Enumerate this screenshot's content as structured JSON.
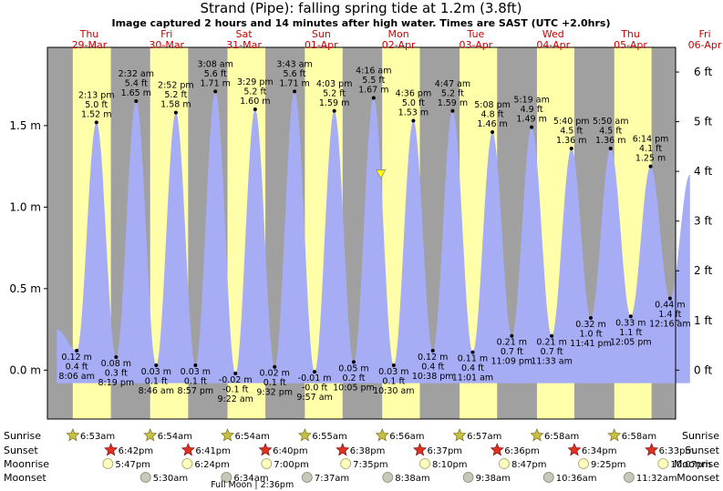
{
  "header": {
    "title": "Strand (Pipe): falling  spring tide at 1.2m (3.8ft)",
    "subtitle": "Image captured 2 hours and 14 minutes after high water. Times are SAST (UTC +2.0hrs)"
  },
  "colors": {
    "night": "#a0a0a0",
    "day": "#ffffaa",
    "tide": "#a6adf5",
    "day_label": "#cc0000",
    "now_marker": "#ffff00"
  },
  "chart_data": {
    "type": "area",
    "title": "Strand (Pipe): falling  spring tide at 1.2m (3.8ft)",
    "y_left_unit": "m",
    "y_right_unit": "ft",
    "ylim_m": [
      -0.3,
      1.98
    ],
    "y_left_ticks": [
      "1.5 m",
      "1.0 m",
      "0.5 m",
      "0.0 m"
    ],
    "y_left_tick_values": [
      1.5,
      1.0,
      0.5,
      0.0
    ],
    "y_right_ticks": [
      "6 ft",
      "5 ft",
      "4 ft",
      "3 ft",
      "2 ft",
      "1 ft",
      "0 ft"
    ],
    "y_right_tick_values": [
      6,
      5,
      4,
      3,
      2,
      1,
      0
    ],
    "x_start": "2026-03-28 23:00",
    "x_end": "2026-04-06 02:00",
    "grid": false,
    "days": [
      {
        "name": "Thu",
        "date": "29-Mar",
        "noon": "2026-03-29 12:00"
      },
      {
        "name": "Fri",
        "date": "30-Mar",
        "noon": "2026-03-30 12:00"
      },
      {
        "name": "Sat",
        "date": "31-Mar",
        "noon": "2026-03-31 12:00"
      },
      {
        "name": "Sun",
        "date": "01-Apr",
        "noon": "2026-04-01 12:00"
      },
      {
        "name": "Mon",
        "date": "02-Apr",
        "noon": "2026-04-02 12:00"
      },
      {
        "name": "Tue",
        "date": "03-Apr",
        "noon": "2026-04-03 12:00"
      },
      {
        "name": "Wed",
        "date": "04-Apr",
        "noon": "2026-04-04 12:00"
      },
      {
        "name": "Thu",
        "date": "05-Apr",
        "noon": "2026-04-05 12:00"
      },
      {
        "name": "Fri",
        "date": "06-Apr",
        "noon": "2026-04-06 12:00"
      }
    ],
    "daylight": [
      {
        "sunrise": "2026-03-29 06:53",
        "sunset": "2026-03-29 18:42"
      },
      {
        "sunrise": "2026-03-30 06:54",
        "sunset": "2026-03-30 18:41"
      },
      {
        "sunrise": "2026-03-31 06:54",
        "sunset": "2026-03-31 18:40"
      },
      {
        "sunrise": "2026-04-01 06:55",
        "sunset": "2026-04-01 18:38"
      },
      {
        "sunrise": "2026-04-02 06:56",
        "sunset": "2026-04-02 18:37"
      },
      {
        "sunrise": "2026-04-03 06:57",
        "sunset": "2026-04-03 18:36"
      },
      {
        "sunrise": "2026-04-04 06:58",
        "sunset": "2026-04-04 18:34"
      },
      {
        "sunrise": "2026-04-05 06:58",
        "sunset": "2026-04-05 18:33"
      }
    ],
    "extremes": [
      {
        "time": "2026-03-29 08:06",
        "height_m": 0.12,
        "type": "low",
        "lines": [
          "0.12 m",
          "0.4 ft",
          "8:06 am"
        ]
      },
      {
        "time": "2026-03-29 14:13",
        "height_m": 1.52,
        "type": "high",
        "lines": [
          "2:13 pm",
          "5.0 ft",
          "1.52 m"
        ]
      },
      {
        "time": "2026-03-29 20:19",
        "height_m": 0.08,
        "type": "low",
        "lines": [
          "0.08 m",
          "0.3 ft",
          "8:19 pm"
        ]
      },
      {
        "time": "2026-03-30 02:32",
        "height_m": 1.65,
        "type": "high",
        "lines": [
          "2:32 am",
          "5.4 ft",
          "1.65 m"
        ]
      },
      {
        "time": "2026-03-30 08:46",
        "height_m": 0.03,
        "type": "low",
        "lines": [
          "0.03 m",
          "0.1 ft",
          "8:46 am"
        ]
      },
      {
        "time": "2026-03-30 14:52",
        "height_m": 1.58,
        "type": "high",
        "lines": [
          "2:52 pm",
          "5.2 ft",
          "1.58 m"
        ]
      },
      {
        "time": "2026-03-30 20:57",
        "height_m": 0.03,
        "type": "low",
        "lines": [
          "0.03 m",
          "0.1 ft",
          "8:57 pm"
        ]
      },
      {
        "time": "2026-03-31 03:08",
        "height_m": 1.71,
        "type": "high",
        "lines": [
          "3:08 am",
          "5.6 ft",
          "1.71 m"
        ]
      },
      {
        "time": "2026-03-31 09:22",
        "height_m": -0.02,
        "type": "low",
        "lines": [
          "-0.02 m",
          "-0.1 ft",
          "9:22 am"
        ]
      },
      {
        "time": "2026-03-31 15:29",
        "height_m": 1.6,
        "type": "high",
        "lines": [
          "3:29 pm",
          "5.2 ft",
          "1.60 m"
        ]
      },
      {
        "time": "2026-03-31 21:32",
        "height_m": 0.02,
        "type": "low",
        "lines": [
          "0.02 m",
          "0.1 ft",
          "9:32 pm"
        ]
      },
      {
        "time": "2026-04-01 03:43",
        "height_m": 1.71,
        "type": "high",
        "lines": [
          "3:43 am",
          "5.6 ft",
          "1.71 m"
        ]
      },
      {
        "time": "2026-04-01 09:57",
        "height_m": -0.01,
        "type": "low",
        "lines": [
          "-0.01 m",
          "-0.0 ft",
          "9:57 am"
        ]
      },
      {
        "time": "2026-04-01 16:03",
        "height_m": 1.59,
        "type": "high",
        "lines": [
          "4:03 pm",
          "5.2 ft",
          "1.59 m"
        ]
      },
      {
        "time": "2026-04-01 22:05",
        "height_m": 0.05,
        "type": "low",
        "lines": [
          "0.05 m",
          "0.2 ft",
          "10:05 pm"
        ]
      },
      {
        "time": "2026-04-02 04:16",
        "height_m": 1.67,
        "type": "high",
        "lines": [
          "4:16 am",
          "5.5 ft",
          "1.67 m"
        ]
      },
      {
        "time": "2026-04-02 10:30",
        "height_m": 0.03,
        "type": "low",
        "lines": [
          "0.03 m",
          "0.1 ft",
          "10:30 am"
        ]
      },
      {
        "time": "2026-04-02 16:36",
        "height_m": 1.53,
        "type": "high",
        "lines": [
          "4:36 pm",
          "5.0 ft",
          "1.53 m"
        ]
      },
      {
        "time": "2026-04-02 22:38",
        "height_m": 0.12,
        "type": "low",
        "lines": [
          "0.12 m",
          "0.4 ft",
          "10:38 pm"
        ]
      },
      {
        "time": "2026-04-03 04:47",
        "height_m": 1.59,
        "type": "high",
        "lines": [
          "4:47 am",
          "5.2 ft",
          "1.59 m"
        ]
      },
      {
        "time": "2026-04-03 11:01",
        "height_m": 0.11,
        "type": "low",
        "lines": [
          "0.11 m",
          "0.4 ft",
          "11:01 am"
        ]
      },
      {
        "time": "2026-04-03 17:08",
        "height_m": 1.46,
        "type": "high",
        "lines": [
          "5:08 pm",
          "4.8 ft",
          "1.46 m"
        ]
      },
      {
        "time": "2026-04-03 23:09",
        "height_m": 0.21,
        "type": "low",
        "lines": [
          "0.21 m",
          "0.7 ft",
          "11:09 pm"
        ]
      },
      {
        "time": "2026-04-04 05:19",
        "height_m": 1.49,
        "type": "high",
        "lines": [
          "5:19 am",
          "4.9 ft",
          "1.49 m"
        ]
      },
      {
        "time": "2026-04-04 11:33",
        "height_m": 0.21,
        "type": "low",
        "lines": [
          "0.21 m",
          "0.7 ft",
          "11:33 am"
        ]
      },
      {
        "time": "2026-04-04 17:40",
        "height_m": 1.36,
        "type": "high",
        "lines": [
          "5:40 pm",
          "4.5 ft",
          "1.36 m"
        ]
      },
      {
        "time": "2026-04-04 23:41",
        "height_m": 0.32,
        "type": "low",
        "lines": [
          "0.32 m",
          "1.0 ft",
          "11:41 pm"
        ]
      },
      {
        "time": "2026-04-05 05:50",
        "height_m": 1.36,
        "type": "high",
        "lines": [
          "5:50 am",
          "4.5 ft",
          "1.36 m"
        ]
      },
      {
        "time": "2026-04-05 12:05",
        "height_m": 0.33,
        "type": "low",
        "lines": [
          "0.33 m",
          "1.1 ft",
          "12:05 pm"
        ]
      },
      {
        "time": "2026-04-05 18:14",
        "height_m": 1.25,
        "type": "high",
        "lines": [
          "6:14 pm",
          "4.1 ft",
          "1.25 m"
        ]
      },
      {
        "time": "2026-04-06 00:16",
        "height_m": 0.44,
        "type": "low",
        "lines": [
          "0.44 m",
          "1.4 ft",
          "12:16 am"
        ]
      }
    ],
    "first_height_m": 0.25,
    "last_height_m": 1.2,
    "now": {
      "time": "2026-04-02 06:30",
      "height_m": 1.2
    }
  },
  "astro": {
    "row_labels": [
      "Sunrise",
      "Sunset",
      "Moonrise",
      "Moonset"
    ],
    "events": [
      {
        "row": 0,
        "time": "2026-03-29 06:53",
        "label": "6:53am",
        "icon": "sunrise-icon"
      },
      {
        "row": 0,
        "time": "2026-03-30 06:54",
        "label": "6:54am",
        "icon": "sunrise-icon"
      },
      {
        "row": 0,
        "time": "2026-03-31 06:54",
        "label": "6:54am",
        "icon": "sunrise-icon"
      },
      {
        "row": 0,
        "time": "2026-04-01 06:55",
        "label": "6:55am",
        "icon": "sunrise-icon"
      },
      {
        "row": 0,
        "time": "2026-04-02 06:56",
        "label": "6:56am",
        "icon": "sunrise-icon"
      },
      {
        "row": 0,
        "time": "2026-04-03 06:57",
        "label": "6:57am",
        "icon": "sunrise-icon"
      },
      {
        "row": 0,
        "time": "2026-04-04 06:58",
        "label": "6:58am",
        "icon": "sunrise-icon"
      },
      {
        "row": 0,
        "time": "2026-04-05 06:58",
        "label": "6:58am",
        "icon": "sunrise-icon"
      },
      {
        "row": 1,
        "time": "2026-03-29 18:42",
        "label": "6:42pm",
        "icon": "sunset-icon"
      },
      {
        "row": 1,
        "time": "2026-03-30 18:41",
        "label": "6:41pm",
        "icon": "sunset-icon"
      },
      {
        "row": 1,
        "time": "2026-03-31 18:40",
        "label": "6:40pm",
        "icon": "sunset-icon"
      },
      {
        "row": 1,
        "time": "2026-04-01 18:38",
        "label": "6:38pm",
        "icon": "sunset-icon"
      },
      {
        "row": 1,
        "time": "2026-04-02 18:37",
        "label": "6:37pm",
        "icon": "sunset-icon"
      },
      {
        "row": 1,
        "time": "2026-04-03 18:36",
        "label": "6:36pm",
        "icon": "sunset-icon"
      },
      {
        "row": 1,
        "time": "2026-04-04 18:34",
        "label": "6:34pm",
        "icon": "sunset-icon"
      },
      {
        "row": 1,
        "time": "2026-04-05 18:33",
        "label": "6:33pm",
        "icon": "sunset-icon"
      },
      {
        "row": 2,
        "time": "2026-03-29 17:47",
        "label": "5:47pm",
        "icon": "moonrise-icon"
      },
      {
        "row": 2,
        "time": "2026-03-30 18:24",
        "label": "6:24pm",
        "icon": "moonrise-icon"
      },
      {
        "row": 2,
        "time": "2026-03-31 19:00",
        "label": "7:00pm",
        "icon": "moonrise-icon"
      },
      {
        "row": 2,
        "time": "2026-04-01 19:35",
        "label": "7:35pm",
        "icon": "moonrise-icon"
      },
      {
        "row": 2,
        "time": "2026-04-02 20:10",
        "label": "8:10pm",
        "icon": "moonrise-icon"
      },
      {
        "row": 2,
        "time": "2026-04-03 20:47",
        "label": "8:47pm",
        "icon": "moonrise-icon"
      },
      {
        "row": 2,
        "time": "2026-04-04 21:25",
        "label": "9:25pm",
        "icon": "moonrise-icon"
      },
      {
        "row": 2,
        "time": "2026-04-05 22:07",
        "label": "10:07pm",
        "icon": "moonrise-icon"
      },
      {
        "row": 3,
        "time": "2026-03-30 05:30",
        "label": "5:30am",
        "icon": "moonset-icon"
      },
      {
        "row": 3,
        "time": "2026-03-31 06:34",
        "label": "6:34am",
        "icon": "moonset-icon"
      },
      {
        "row": 3,
        "time": "2026-04-01 07:37",
        "label": "7:37am",
        "icon": "moonset-icon"
      },
      {
        "row": 3,
        "time": "2026-04-02 08:38",
        "label": "8:38am",
        "icon": "moonset-icon"
      },
      {
        "row": 3,
        "time": "2026-04-03 09:38",
        "label": "9:38am",
        "icon": "moonset-icon"
      },
      {
        "row": 3,
        "time": "2026-04-04 10:36",
        "label": "10:36am",
        "icon": "moonset-icon"
      },
      {
        "row": 3,
        "time": "2026-04-05 11:32",
        "label": "11:32am",
        "icon": "moonset-icon"
      }
    ],
    "moon_phase": {
      "time": "2026-03-31 14:36",
      "label": "Full Moon | 2:36pm"
    }
  }
}
